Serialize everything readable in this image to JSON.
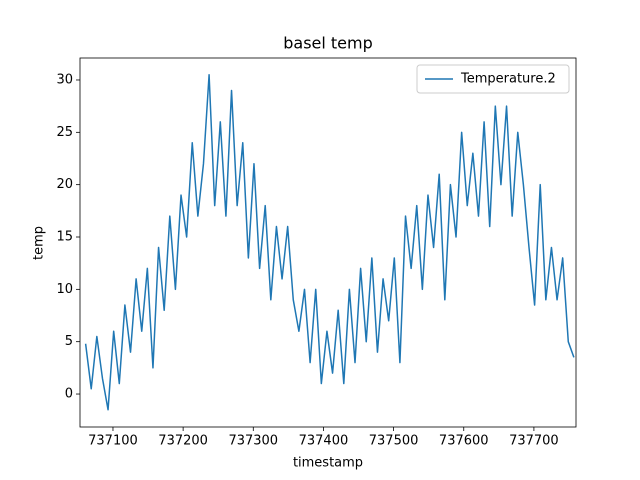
{
  "chart_data": {
    "type": "line",
    "title": "basel temp",
    "xlabel": "timestamp",
    "ylabel": "temp",
    "x": [
      737061,
      737069,
      737077,
      737085,
      737093,
      737101,
      737109,
      737117,
      737125,
      737133,
      737141,
      737149,
      737157,
      737165,
      737173,
      737181,
      737189,
      737197,
      737205,
      737213,
      737221,
      737229,
      737237,
      737245,
      737253,
      737261,
      737269,
      737277,
      737285,
      737293,
      737301,
      737309,
      737317,
      737325,
      737333,
      737341,
      737349,
      737357,
      737365,
      737373,
      737381,
      737389,
      737397,
      737405,
      737413,
      737421,
      737429,
      737437,
      737445,
      737453,
      737461,
      737469,
      737477,
      737485,
      737493,
      737501,
      737509,
      737517,
      737525,
      737533,
      737541,
      737549,
      737557,
      737565,
      737573,
      737581,
      737589,
      737597,
      737605,
      737613,
      737621,
      737629,
      737637,
      737645,
      737653,
      737661,
      737669,
      737677,
      737685,
      737693,
      737701,
      737709,
      737717,
      737725,
      737733,
      737741,
      737749,
      737757
    ],
    "series": [
      {
        "name": "Temperature.2",
        "color": "#1f77b4",
        "values": [
          4.8,
          0.5,
          5.5,
          1.5,
          -1.5,
          6,
          1,
          8.5,
          4,
          11,
          6,
          12,
          2.5,
          14,
          8,
          17,
          10,
          19,
          15,
          24,
          17,
          22,
          30.5,
          18,
          26,
          17,
          29,
          18,
          24,
          13,
          22,
          12,
          18,
          9,
          16,
          11,
          16,
          9,
          6,
          10,
          3,
          10,
          1,
          6,
          2,
          8,
          1,
          10,
          3,
          12,
          5,
          13,
          4,
          11,
          7,
          13,
          3,
          17,
          12,
          18,
          10,
          19,
          14,
          21,
          9,
          20,
          15,
          25,
          18,
          23,
          17,
          26,
          16,
          27.5,
          20,
          27.5,
          17,
          25,
          20,
          14,
          8.5,
          20,
          9,
          14,
          9,
          13,
          5,
          3.5
        ]
      }
    ],
    "xlim": [
      737053,
      737760
    ],
    "xticks": [
      737100,
      737200,
      737300,
      737400,
      737500,
      737600,
      737700
    ],
    "ylim": [
      -3.15,
      32.1
    ],
    "yticks": [
      0,
      5,
      10,
      15,
      20,
      25,
      30
    ],
    "legend": "upper right"
  }
}
